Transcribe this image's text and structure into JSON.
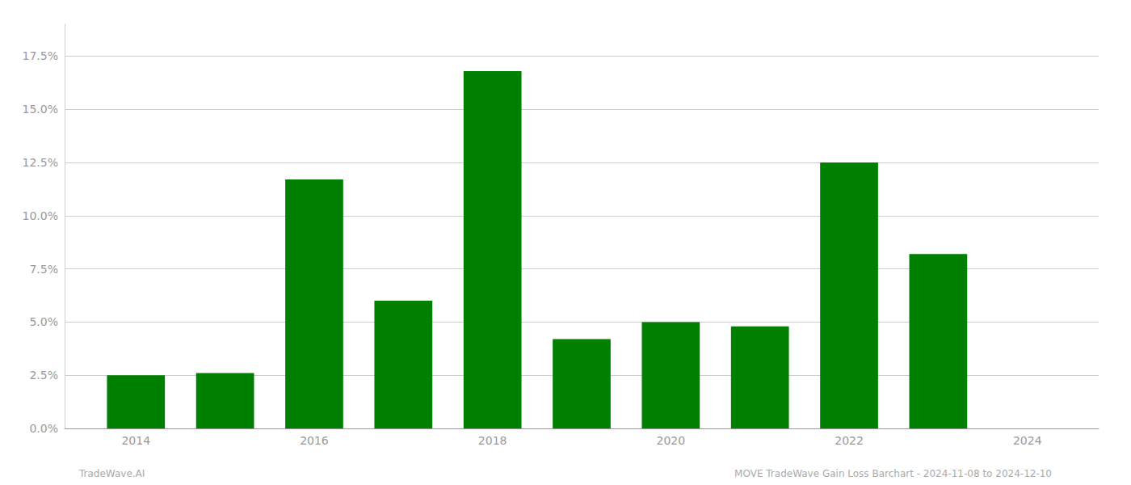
{
  "chart_data": {
    "type": "bar",
    "x": [
      2014,
      2015,
      2016,
      2017,
      2018,
      2019,
      2020,
      2021,
      2022,
      2023
    ],
    "values": [
      0.025,
      0.026,
      0.117,
      0.06,
      0.168,
      0.042,
      0.05,
      0.048,
      0.125,
      0.082
    ],
    "color": "#008000",
    "xlim": [
      2013.2,
      2024.8
    ],
    "xticks": [
      2014,
      2016,
      2018,
      2020,
      2022,
      2024
    ],
    "ylim": [
      0,
      0.19
    ],
    "yticks": [
      {
        "value": 0.0,
        "label": "0.0%"
      },
      {
        "value": 0.025,
        "label": "2.5%"
      },
      {
        "value": 0.05,
        "label": "5.0%"
      },
      {
        "value": 0.075,
        "label": "7.5%"
      },
      {
        "value": 0.1,
        "label": "10.0%"
      },
      {
        "value": 0.125,
        "label": "12.5%"
      },
      {
        "value": 0.15,
        "label": "15.0%"
      },
      {
        "value": 0.175,
        "label": "17.5%"
      }
    ],
    "grid": true,
    "annotations": [
      "TradeWave.AI",
      "MOVE TradeWave Gain Loss Barchart - 2024-11-08 to 2024-12-10"
    ]
  }
}
